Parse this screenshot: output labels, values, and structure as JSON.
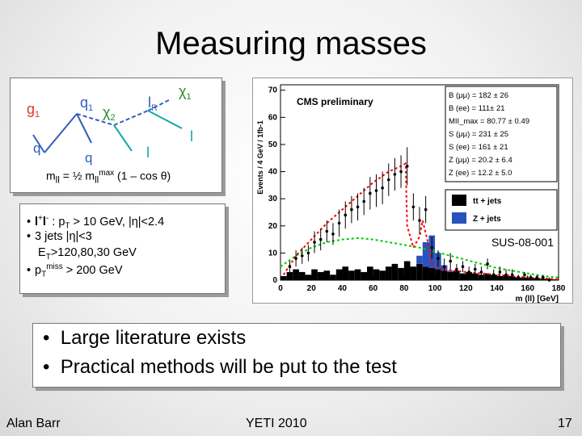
{
  "slide": {
    "title": "Measuring masses",
    "footer_left": "Alan Barr",
    "footer_center": "YETI 2010",
    "page_number": "17"
  },
  "diagram": {
    "labels": {
      "g1": "g",
      "g1_sub": "1",
      "q1": "q",
      "q1_sub": "1",
      "chi2": "χ",
      "chi2_sub": "2",
      "l2": "l",
      "l2_sub": "R",
      "chi1": "χ",
      "chi1_sub": "1",
      "q_left": "q",
      "q_bottom": "q",
      "lep_right": "l",
      "lep_bottom": "l"
    },
    "formula": {
      "prefix": "m",
      "sub1": "ll",
      "mid1": " = ½ m",
      "sub2": "ll",
      "sup": "max",
      "suffix": " (1 – cos θ)"
    }
  },
  "cuts": [
    {
      "bullet": "•",
      "segments": [
        {
          "t": "l",
          "s": "b"
        },
        {
          "t": "+",
          "s": "sup"
        },
        {
          "t": "l",
          "s": "b"
        },
        {
          "t": "-",
          "s": "sup"
        },
        {
          "t": " : p"
        },
        {
          "t": "T",
          "s": "sub"
        },
        {
          "t": " > 10 GeV, |η|<2.4"
        }
      ]
    },
    {
      "bullet": "•",
      "segments": [
        {
          "t": "3 jets |η|<3"
        }
      ]
    },
    {
      "bullet": "",
      "segments": [
        {
          "t": "  E"
        },
        {
          "t": "T",
          "s": "sub"
        },
        {
          "t": ">120,80,30 GeV"
        }
      ]
    },
    {
      "bullet": "•",
      "segments": [
        {
          "t": "p"
        },
        {
          "t": "T",
          "s": "sub"
        },
        {
          "t": "miss",
          "s": "sup"
        },
        {
          "t": " > 200 GeV"
        }
      ]
    }
  ],
  "bullets": [
    "Large literature exists",
    "Practical methods will be put to the test"
  ],
  "chart_data": {
    "type": "bar",
    "title": "CMS preliminary",
    "xlabel": "m (ll) [GeV]",
    "ylabel": "Events / 4 GeV / 1fb-1",
    "xlim": [
      0,
      180
    ],
    "ylim": [
      0,
      72
    ],
    "x_ticks": [
      0,
      20,
      40,
      60,
      80,
      100,
      120,
      140,
      160,
      180
    ],
    "y_ticks": [
      0,
      10,
      20,
      30,
      40,
      50,
      60,
      70
    ],
    "annotation": "SUS-08-001",
    "fit_results": [
      "B (μμ) =  182 ± 26",
      "B (ee) =  111± 21",
      "MII_max = 80.77 ± 0.49",
      "S (μμ) =  231 ± 25",
      "S (ee) =  161 ± 21",
      "Z (μμ) =  20.2 ± 6.4",
      "Z (ee) =  12.2 ± 5.0"
    ],
    "legend": [
      "tt + jets",
      "Z + jets"
    ],
    "bin_width": 4,
    "series": [
      {
        "name": "tt + jets",
        "color": "#000000",
        "values": [
          1.5,
          3,
          4,
          3,
          2,
          4,
          3,
          3.5,
          2,
          4,
          5,
          3.5,
          4,
          3,
          5,
          4,
          3.5,
          5,
          6,
          4.5,
          7,
          5,
          6,
          5,
          4.5,
          4,
          3.5,
          3,
          3.5,
          2.5,
          3,
          2.5,
          2,
          2.5,
          2,
          1.5,
          2,
          1.5,
          1,
          1,
          0.8,
          0.8,
          0.5,
          0.5,
          0.3
        ]
      },
      {
        "name": "Z + jets",
        "color": "#2a52be",
        "values": [
          0,
          0,
          0,
          0,
          0,
          0,
          0,
          0,
          0,
          0,
          0,
          0,
          0,
          0,
          0,
          0,
          0,
          0,
          0,
          0,
          0,
          0,
          3,
          9,
          12,
          6,
          2,
          0.5,
          0,
          0,
          0,
          0,
          0,
          0,
          0,
          0,
          0,
          0,
          0,
          0,
          0,
          0,
          0,
          0,
          0
        ]
      }
    ],
    "data_points": {
      "x": [
        6,
        10,
        14,
        18,
        22,
        26,
        30,
        34,
        38,
        42,
        46,
        50,
        54,
        58,
        62,
        66,
        70,
        74,
        78,
        82,
        86,
        90,
        94,
        98,
        102,
        106,
        110,
        114,
        118,
        122,
        126,
        130,
        134,
        138,
        142,
        146,
        150,
        154,
        158,
        162,
        166,
        170,
        174
      ],
      "y": [
        5,
        8,
        9,
        10,
        14,
        15,
        18,
        17,
        21,
        24,
        26,
        27,
        29,
        32,
        33,
        34,
        37,
        39,
        40,
        42,
        27,
        22,
        26,
        12,
        8,
        5,
        7,
        4,
        5,
        3,
        4,
        3,
        6,
        2,
        3,
        2,
        2,
        1,
        2,
        1,
        1,
        1,
        0
      ],
      "err": [
        2,
        3,
        3,
        3,
        4,
        4,
        4,
        4,
        5,
        5,
        5,
        5,
        5,
        6,
        6,
        6,
        6,
        6,
        6,
        7,
        5,
        5,
        5,
        4,
        3,
        3,
        3,
        2,
        2,
        2,
        2,
        2,
        2,
        2,
        2,
        2,
        2,
        1,
        1,
        1,
        1,
        1,
        1
      ]
    },
    "fit_total": {
      "name": "total fit",
      "color": "#ff0000",
      "x": [
        2,
        10,
        20,
        30,
        40,
        50,
        60,
        70,
        78,
        81,
        82,
        86,
        90,
        92,
        95,
        98,
        105,
        120,
        140,
        160,
        180
      ],
      "y": [
        2,
        9,
        15,
        21,
        26,
        31,
        36,
        40,
        42,
        43,
        20,
        12,
        16,
        22,
        15,
        6,
        4,
        3,
        2,
        1,
        0.3
      ]
    },
    "fit_background": {
      "name": "background fit",
      "color": "#00cc00",
      "x": [
        0,
        10,
        20,
        30,
        40,
        50,
        60,
        70,
        80,
        90,
        100,
        110,
        120,
        130,
        140,
        150,
        160,
        170,
        180
      ],
      "y": [
        5,
        9,
        12,
        14,
        15,
        15.5,
        15,
        14,
        13,
        12,
        10.5,
        9,
        7.5,
        6,
        4.5,
        3.5,
        2.5,
        1.5,
        1
      ]
    }
  }
}
